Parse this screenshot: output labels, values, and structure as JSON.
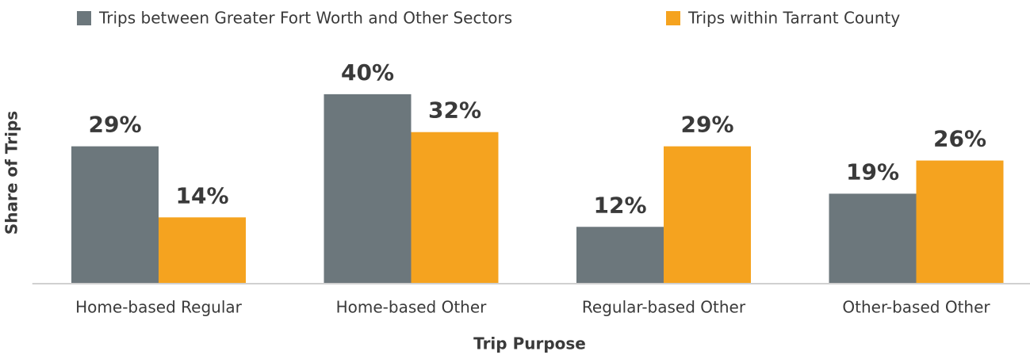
{
  "chart_data": {
    "type": "bar",
    "x_label": "Trip Purpose",
    "y_label": "Share of Trips",
    "categories": [
      "Home-based Regular",
      "Home-based Other",
      "Regular-based Other",
      "Other-based Other"
    ],
    "series": [
      {
        "name": "Trips between Greater Fort Worth and Other Sectors",
        "color": "#6c777c",
        "values": [
          29,
          40,
          12,
          19
        ],
        "value_labels": [
          "29%",
          "40%",
          "12%",
          "19%"
        ]
      },
      {
        "name": "Trips within Tarrant County",
        "color": "#f5a31f",
        "values": [
          14,
          32,
          29,
          26
        ],
        "value_labels": [
          "14%",
          "32%",
          "29%",
          "26%"
        ]
      }
    ],
    "ylim": [
      0,
      45
    ],
    "legend": "top"
  }
}
